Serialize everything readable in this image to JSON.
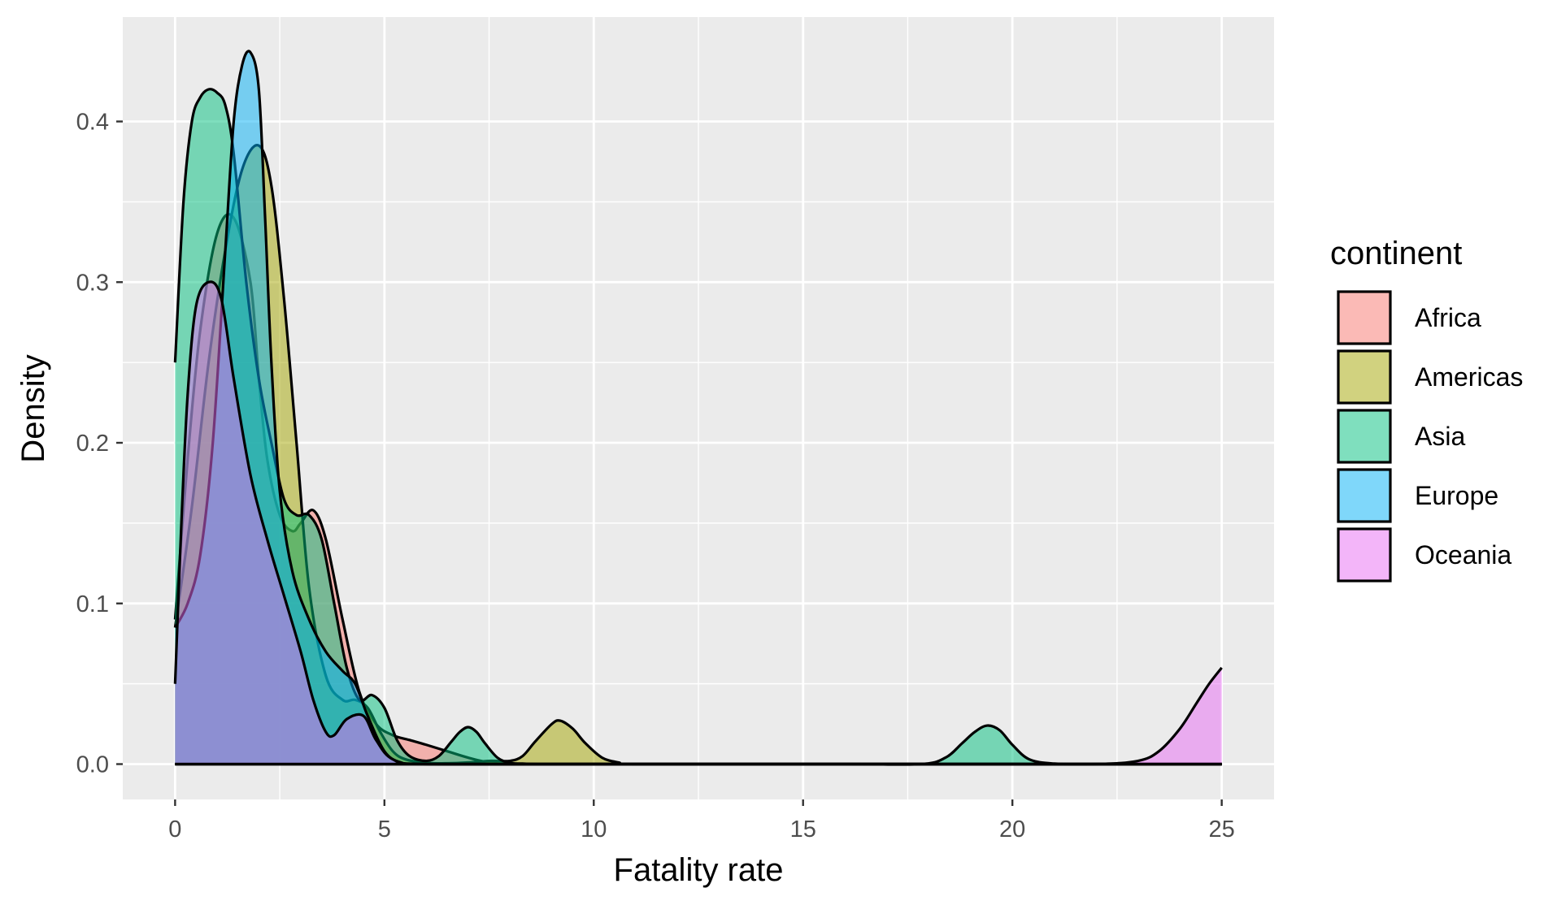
{
  "chart_data": {
    "type": "area",
    "xlabel": "Fatality rate",
    "ylabel": "Density",
    "xlim": [
      -1.25,
      26.25
    ],
    "ylim": [
      -0.022,
      0.465
    ],
    "x_ticks": [
      0,
      5,
      10,
      15,
      20,
      25
    ],
    "x_tick_labels": [
      "0",
      "5",
      "10",
      "15",
      "20",
      "25"
    ],
    "y_ticks": [
      0,
      0.1,
      0.2,
      0.3,
      0.4
    ],
    "y_tick_labels": [
      "0.0",
      "0.1",
      "0.2",
      "0.3",
      "0.4"
    ],
    "grid": true,
    "legend": {
      "title": "continent",
      "position": "right"
    },
    "series": [
      {
        "name": "Africa",
        "color": "#F8766D",
        "x": [
          0,
          0.3,
          0.6,
          1.0,
          1.4,
          1.8,
          2.0,
          2.2,
          2.5,
          2.8,
          3.0,
          3.3,
          3.6,
          4.0,
          4.4,
          4.8,
          5.2,
          5.6,
          6.0,
          6.5,
          7.0,
          7.5,
          8.0,
          8.5,
          9.0,
          10,
          12,
          15,
          20,
          25
        ],
        "y": [
          0.09,
          0.19,
          0.27,
          0.33,
          0.34,
          0.3,
          0.24,
          0.19,
          0.155,
          0.145,
          0.15,
          0.158,
          0.14,
          0.09,
          0.045,
          0.025,
          0.018,
          0.015,
          0.012,
          0.008,
          0.004,
          0.001,
          0,
          0,
          0,
          0,
          0,
          0,
          0,
          0
        ]
      },
      {
        "name": "Americas",
        "color": "#A3A500",
        "x": [
          0,
          0.4,
          0.8,
          1.2,
          1.6,
          2.0,
          2.3,
          2.6,
          2.9,
          3.2,
          3.6,
          4.0,
          4.3,
          4.6,
          4.9,
          5.2,
          5.5,
          6.0,
          6.5,
          7.0,
          7.5,
          8.0,
          8.3,
          8.6,
          9.0,
          9.2,
          9.5,
          9.8,
          10.2,
          10.6,
          11,
          15,
          20,
          25
        ],
        "y": [
          0.085,
          0.16,
          0.25,
          0.32,
          0.37,
          0.385,
          0.36,
          0.29,
          0.2,
          0.11,
          0.055,
          0.04,
          0.04,
          0.035,
          0.02,
          0.008,
          0.003,
          0.0008,
          0.0005,
          0.001,
          0.002,
          0.002,
          0.005,
          0.014,
          0.025,
          0.027,
          0.022,
          0.013,
          0.004,
          0.001,
          0,
          0,
          0,
          0
        ]
      },
      {
        "name": "Asia",
        "color": "#00BF7D",
        "x": [
          0,
          0.2,
          0.4,
          0.6,
          0.8,
          1.0,
          1.2,
          1.4,
          1.7,
          2.0,
          2.3,
          2.6,
          2.9,
          3.2,
          3.5,
          3.8,
          4.1,
          4.4,
          4.7,
          5.0,
          5.3,
          5.6,
          6.0,
          6.3,
          6.6,
          6.8,
          7.0,
          7.2,
          7.4,
          7.7,
          8.0,
          8.3,
          9,
          12,
          16,
          17.8,
          18.4,
          18.8,
          19.1,
          19.4,
          19.7,
          20.0,
          20.4,
          21,
          22,
          25
        ],
        "y": [
          0.25,
          0.35,
          0.4,
          0.415,
          0.42,
          0.418,
          0.41,
          0.38,
          0.3,
          0.24,
          0.2,
          0.165,
          0.155,
          0.155,
          0.14,
          0.1,
          0.06,
          0.04,
          0.043,
          0.035,
          0.015,
          0.005,
          0.002,
          0.005,
          0.014,
          0.02,
          0.023,
          0.02,
          0.013,
          0.004,
          0.0008,
          0.0003,
          0,
          0,
          0,
          0,
          0.004,
          0.013,
          0.02,
          0.024,
          0.021,
          0.012,
          0.003,
          0.0003,
          0,
          0
        ]
      },
      {
        "name": "Europe",
        "color": "#00B0F6",
        "x": [
          0,
          0.3,
          0.6,
          0.9,
          1.2,
          1.4,
          1.6,
          1.8,
          2.0,
          2.15,
          2.3,
          2.5,
          2.8,
          3.2,
          3.6,
          4.0,
          4.3,
          4.6,
          5.0,
          5.4,
          6,
          10,
          15,
          20,
          25
        ],
        "y": [
          0.085,
          0.1,
          0.13,
          0.2,
          0.32,
          0.4,
          0.435,
          0.443,
          0.42,
          0.34,
          0.25,
          0.17,
          0.12,
          0.09,
          0.07,
          0.058,
          0.05,
          0.03,
          0.008,
          0.001,
          0,
          0,
          0,
          0,
          0
        ]
      },
      {
        "name": "Oceania",
        "color": "#E76BF3",
        "x": [
          0,
          0.15,
          0.3,
          0.5,
          0.8,
          1.1,
          1.4,
          1.8,
          2.2,
          2.6,
          3.0,
          3.3,
          3.6,
          3.8,
          4.1,
          4.5,
          4.8,
          5.2,
          6,
          10,
          15,
          20,
          22,
          23,
          23.5,
          24,
          24.4,
          24.7,
          25
        ],
        "y": [
          0.05,
          0.15,
          0.23,
          0.285,
          0.3,
          0.29,
          0.24,
          0.18,
          0.14,
          0.105,
          0.07,
          0.04,
          0.02,
          0.018,
          0.028,
          0.03,
          0.015,
          0.003,
          0,
          0,
          0,
          0,
          0,
          0.002,
          0.008,
          0.022,
          0.038,
          0.05,
          0.06
        ]
      }
    ]
  }
}
